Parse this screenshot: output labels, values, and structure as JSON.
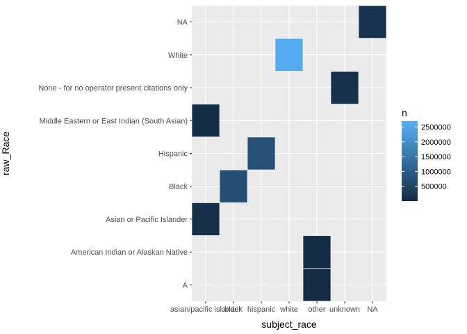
{
  "chart_data": {
    "type": "heatmap",
    "xlabel": "subject_race",
    "ylabel": "raw_Race",
    "x_categories": [
      "asian/pacific islander",
      "black",
      "hispanic",
      "white",
      "other",
      "unknown",
      "NA"
    ],
    "y_categories": [
      "A",
      "American Indian or Alaskan Native",
      "Asian or Pacific Islander",
      "Black",
      "Hispanic",
      "Middle Eastern or East Indian (South Asian)",
      "None - for no operator present citations only",
      "White",
      "NA"
    ],
    "cells": [
      {
        "x": "NA",
        "y": "NA",
        "n": 150000
      },
      {
        "x": "white",
        "y": "White",
        "n": 2600000
      },
      {
        "x": "unknown",
        "y": "None - for no operator present citations only",
        "n": 120000
      },
      {
        "x": "asian/pacific islander",
        "y": "Middle Eastern or East Indian (South Asian)",
        "n": 60000
      },
      {
        "x": "hispanic",
        "y": "Hispanic",
        "n": 750000
      },
      {
        "x": "black",
        "y": "Black",
        "n": 700000
      },
      {
        "x": "asian/pacific islander",
        "y": "Asian or Pacific Islander",
        "n": 90000
      },
      {
        "x": "other",
        "y": "American Indian or Alaskan Native",
        "n": 40000
      },
      {
        "x": "other",
        "y": "A",
        "n": 20000
      }
    ],
    "legend": {
      "title": "n",
      "ticks": [
        500000,
        1000000,
        1500000,
        2000000,
        2500000
      ],
      "tick_labels": [
        "500000",
        "1000000",
        "1500000",
        "2000000",
        "2500000"
      ],
      "range": [
        0,
        2700000
      ],
      "low_color": "#132B43",
      "high_color": "#56B1F7",
      "placement": "right"
    },
    "grid": true,
    "panel_background": "#EBEBEB"
  }
}
